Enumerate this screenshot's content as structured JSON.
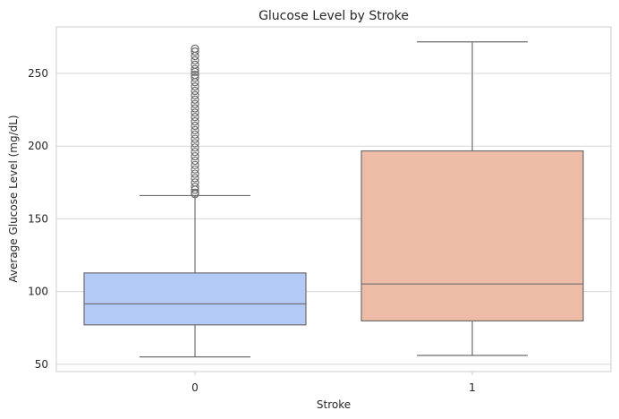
{
  "chart_data": {
    "type": "box",
    "title": "Glucose Level by Stroke",
    "xlabel": "Stroke",
    "ylabel": "Average Glucose Level (mg/dL)",
    "ylim": [
      45,
      282
    ],
    "yticks": [
      50,
      100,
      150,
      200,
      250
    ],
    "grid": true,
    "categories": [
      "0",
      "1"
    ],
    "colors": [
      "#b3c9f6",
      "#edbca6"
    ],
    "line_color": "#6e6e6e",
    "boxes": [
      {
        "category": "0",
        "whisker_low": 55.1,
        "q1": 77.1,
        "median": 91.5,
        "q3": 112.8,
        "whisker_high": 166.0,
        "outliers": [
          167,
          168,
          170,
          172,
          175,
          178,
          181,
          184,
          187,
          190,
          193,
          196,
          199,
          202,
          205,
          208,
          211,
          214,
          217,
          220,
          223,
          226,
          229,
          232,
          235,
          238,
          241,
          244,
          247,
          249,
          251,
          253,
          256,
          259,
          262,
          265,
          267
        ]
      },
      {
        "category": "1",
        "whisker_low": 56.1,
        "q1": 79.8,
        "median": 105.2,
        "q3": 196.7,
        "whisker_high": 271.7,
        "outliers": []
      }
    ]
  }
}
